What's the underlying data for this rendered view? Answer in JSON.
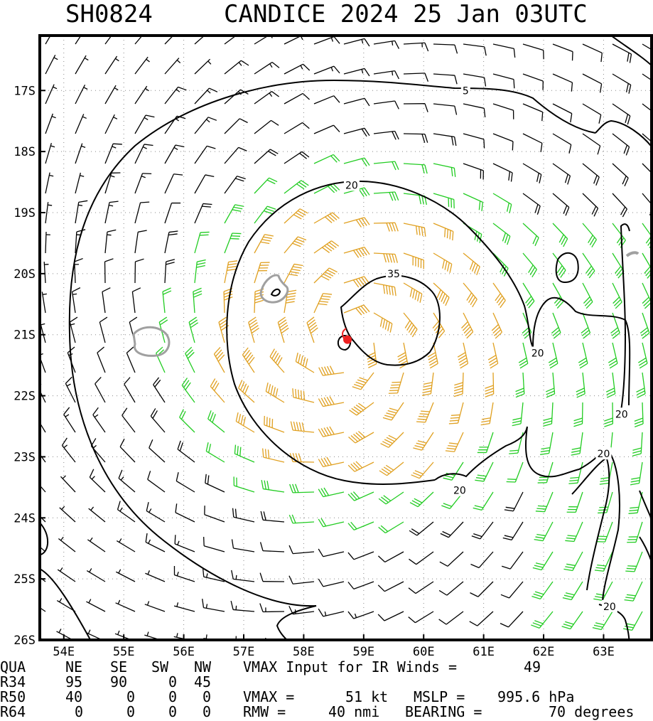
{
  "title": {
    "storm_id": "SH0824",
    "storm_name_time": "CANDICE 2024 25 Jan 03UTC"
  },
  "colors": {
    "weak_barb": "#000000",
    "gale_barb": "#22cc22",
    "storm_barb": "#e0a020",
    "isotach": "#000000",
    "secondary_contour": "#a0a0a0",
    "center_marker": "#ee2222",
    "grid": "#888888"
  },
  "chart_data": {
    "type": "wind_barb_map",
    "lon_range": [
      53.6,
      63.8
    ],
    "lat_range": [
      -26.0,
      -16.1
    ],
    "x_ticks": [
      "54E",
      "55E",
      "56E",
      "57E",
      "58E",
      "59E",
      "60E",
      "61E",
      "62E",
      "63E"
    ],
    "y_ticks": [
      "17S",
      "18S",
      "19S",
      "20S",
      "21S",
      "22S",
      "23S",
      "24S",
      "25S",
      "26S"
    ],
    "grid": true,
    "isotach_labels": [
      {
        "text": "5",
        "lon": 60.7,
        "lat": -17.0
      },
      {
        "text": "20",
        "lon": 58.8,
        "lat": -18.55
      },
      {
        "text": "35",
        "lon": 59.5,
        "lat": -20.0
      },
      {
        "text": "20",
        "lon": 61.9,
        "lat": -21.3
      },
      {
        "text": "20",
        "lon": 63.3,
        "lat": -22.3
      },
      {
        "text": "20",
        "lon": 63.0,
        "lat": -22.95
      },
      {
        "text": "20",
        "lon": 60.6,
        "lat": -23.55
      },
      {
        "text": "20",
        "lon": 63.1,
        "lat": -25.45
      }
    ],
    "center": {
      "lon": 58.73,
      "lat": -21.08
    }
  },
  "info": {
    "headers": [
      "QUA",
      "NE",
      "SE",
      "SW",
      "NW"
    ],
    "vmax_input_text": "VMAX Input for IR Winds =",
    "vmax_input_value": "49",
    "rows": [
      {
        "label": "R34",
        "ne": "95",
        "se": "90",
        "sw": "0",
        "nw": "45"
      },
      {
        "label": "R50",
        "ne": "40",
        "se": "0",
        "sw": "0",
        "nw": "0"
      },
      {
        "label": "R64",
        "ne": "0",
        "se": "0",
        "sw": "0",
        "nw": "0"
      }
    ],
    "vmax_text": "VMAX =",
    "vmax_value": "51 kt",
    "mslp_text": "MSLP =",
    "mslp_value": "995.6 hPa",
    "rmw_text": "RMW =",
    "rmw_value": "40 nmi",
    "bearing_text": "BEARING =",
    "bearing_value": "70 degrees"
  }
}
